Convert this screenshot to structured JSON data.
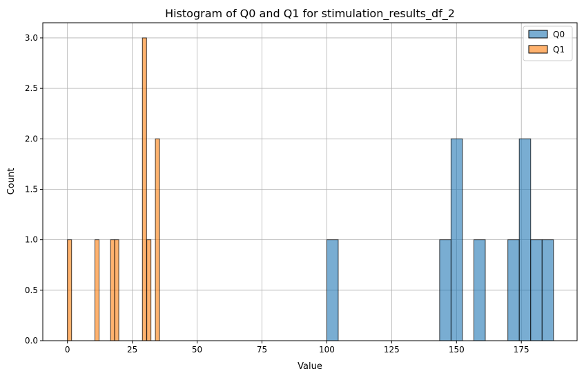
{
  "chart_data": {
    "type": "bar",
    "title": "Histogram of Q0 and Q1 for stimulation_results_df_2",
    "xlabel": "Value",
    "ylabel": "Count",
    "xlim": [
      -9.5,
      196.5
    ],
    "ylim": [
      0,
      3.15
    ],
    "xticks": [
      0,
      25,
      50,
      75,
      100,
      125,
      150,
      175
    ],
    "xtick_labels": [
      "0",
      "25",
      "50",
      "75",
      "100",
      "125",
      "150",
      "175"
    ],
    "yticks": [
      0,
      0.5,
      1,
      1.5,
      2,
      2.5,
      3
    ],
    "ytick_labels": [
      "0.0",
      "0.5",
      "1.0",
      "1.5",
      "2.0",
      "2.5",
      "3.0"
    ],
    "grid": true,
    "legend_position": "top-right",
    "series": [
      {
        "name": "Q0",
        "color": "#1f77b4",
        "bins": [
          {
            "x0": 100.0,
            "x1": 104.4,
            "count": 1
          },
          {
            "x0": 143.5,
            "x1": 147.9,
            "count": 1
          },
          {
            "x0": 147.9,
            "x1": 152.3,
            "count": 2
          },
          {
            "x0": 156.7,
            "x1": 161.1,
            "count": 1
          },
          {
            "x0": 169.8,
            "x1": 174.2,
            "count": 1
          },
          {
            "x0": 174.2,
            "x1": 178.6,
            "count": 2
          },
          {
            "x0": 178.6,
            "x1": 183.0,
            "count": 1
          },
          {
            "x0": 183.0,
            "x1": 187.4,
            "count": 1
          }
        ]
      },
      {
        "name": "Q1",
        "color": "#ff7f0e",
        "bins": [
          {
            "x0": 0.0,
            "x1": 1.6,
            "count": 1
          },
          {
            "x0": 10.6,
            "x1": 12.2,
            "count": 1
          },
          {
            "x0": 16.6,
            "x1": 18.2,
            "count": 1
          },
          {
            "x0": 18.2,
            "x1": 19.8,
            "count": 1
          },
          {
            "x0": 28.9,
            "x1": 30.5,
            "count": 3
          },
          {
            "x0": 30.6,
            "x1": 32.2,
            "count": 1
          },
          {
            "x0": 33.9,
            "x1": 35.5,
            "count": 2
          }
        ]
      }
    ]
  }
}
